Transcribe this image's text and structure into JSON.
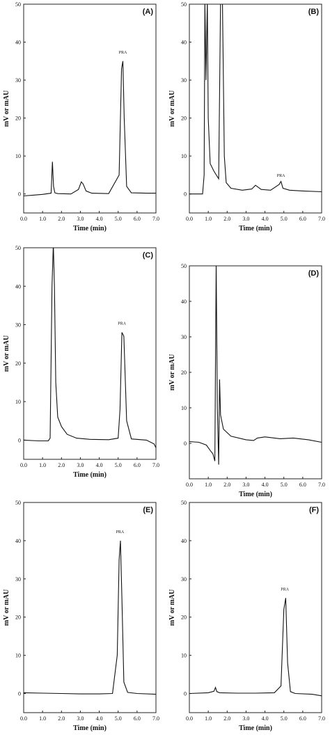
{
  "chart_data": [
    {
      "type": "line",
      "panel_label": "(A)",
      "xlabel": "Time (min)",
      "ylabel": "mV or mAU",
      "xlim": [
        0,
        7
      ],
      "ylim": [
        -5,
        50
      ],
      "xticks": [
        "0.0",
        "1.0",
        "2.0",
        "3.0",
        "4.0",
        "5.0",
        "6.0",
        "7.0"
      ],
      "yticks": [
        "0",
        "10",
        "20",
        "30",
        "40",
        "50"
      ],
      "annotations": [
        {
          "text": "PRA",
          "x": 5.25,
          "y": 37
        }
      ],
      "series": [
        {
          "x": [
            0,
            0.5,
            1.0,
            1.45,
            1.52,
            1.58,
            1.65,
            1.8,
            2.5,
            2.9,
            3.05,
            3.15,
            3.3,
            3.6,
            4.5,
            5.05,
            5.18,
            5.25,
            5.32,
            5.45,
            5.7,
            6.5,
            7.0
          ],
          "y": [
            -0.5,
            -0.3,
            -0.1,
            0.2,
            8.5,
            2.0,
            0.3,
            0.1,
            0.0,
            1.2,
            3.2,
            2.6,
            0.8,
            0.2,
            0.1,
            5.0,
            33.0,
            35.0,
            20.0,
            2.0,
            0.3,
            0.2,
            0.2
          ]
        }
      ]
    },
    {
      "type": "line",
      "panel_label": "(B)",
      "xlabel": "Time (min)",
      "ylabel": "mV or mAU",
      "xlim": [
        0,
        7
      ],
      "ylim": [
        -5,
        50
      ],
      "xticks": [
        "0.0",
        "1.0",
        "2.0",
        "3.0",
        "4.0",
        "5.0",
        "6.0",
        "7.0"
      ],
      "yticks": [
        "0",
        "10",
        "20",
        "30",
        "40",
        "50"
      ],
      "annotations": [
        {
          "text": "PRA",
          "x": 4.85,
          "y": 4.5
        }
      ],
      "series": [
        {
          "x": [
            0,
            0.7,
            0.78,
            0.82,
            0.88,
            0.95,
            1.0,
            1.1,
            1.3,
            1.55,
            1.65,
            1.75,
            1.85,
            1.95,
            2.2,
            2.8,
            3.3,
            3.5,
            3.8,
            4.3,
            4.75,
            4.85,
            4.95,
            5.3,
            6.0,
            7.0
          ],
          "y": [
            0,
            0,
            5.0,
            51.0,
            30.0,
            51.0,
            20.0,
            8.0,
            6.0,
            4.0,
            51.0,
            51.0,
            10.0,
            3.0,
            1.5,
            1.0,
            1.3,
            2.3,
            1.2,
            1.0,
            2.5,
            3.3,
            1.5,
            1.0,
            0.8,
            0.6
          ]
        }
      ]
    },
    {
      "type": "line",
      "panel_label": "(C)",
      "xlabel": "Time (min)",
      "ylabel": "mV or mAU",
      "xlim": [
        0,
        7
      ],
      "ylim": [
        -5,
        50
      ],
      "xticks": [
        "0.0",
        "1.0",
        "2.0",
        "3.0",
        "4.0",
        "5.0",
        "6.0",
        "7.0"
      ],
      "yticks": [
        "0",
        "10",
        "20",
        "30",
        "40",
        "50"
      ],
      "annotations": [
        {
          "text": "PRA",
          "x": 5.2,
          "y": 30
        }
      ],
      "series": [
        {
          "x": [
            0,
            0.8,
            1.3,
            1.4,
            1.5,
            1.57,
            1.63,
            1.7,
            1.8,
            2.0,
            2.3,
            2.8,
            3.5,
            4.5,
            5.0,
            5.1,
            5.2,
            5.3,
            5.45,
            5.7,
            6.5,
            6.9,
            7.0
          ],
          "y": [
            0,
            -0.2,
            -0.2,
            0.5,
            40.0,
            51.0,
            40.0,
            15.0,
            6.0,
            3.5,
            1.5,
            0.5,
            0.2,
            0.1,
            0.5,
            8.0,
            28.0,
            27.0,
            5.0,
            0.3,
            0.0,
            -1.0,
            -2.0
          ]
        }
      ]
    },
    {
      "type": "line",
      "panel_label": "(D)",
      "xlabel": "Time (min)",
      "ylabel": "mV or mAU",
      "xlim": [
        0,
        7
      ],
      "ylim": [
        -10,
        50
      ],
      "xticks": [
        "0.0",
        "1.0",
        "2.0",
        "3.0",
        "4.0",
        "5.0",
        "6.0",
        "7.0"
      ],
      "yticks": [
        "0",
        "10",
        "20",
        "30",
        "40",
        "50"
      ],
      "annotations": [],
      "series": [
        {
          "x": [
            0,
            0.5,
            0.9,
            1.1,
            1.25,
            1.35,
            1.42,
            1.48,
            1.55,
            1.6,
            1.65,
            1.8,
            2.2,
            3.0,
            3.4,
            3.6,
            4.0,
            4.8,
            5.5,
            6.3,
            7.0
          ],
          "y": [
            0.5,
            0.3,
            -0.5,
            -2.0,
            -3.0,
            -5.0,
            51.0,
            10.0,
            -6.0,
            18.0,
            8.0,
            4.0,
            2.0,
            1.0,
            0.8,
            1.5,
            1.8,
            1.3,
            1.5,
            1.0,
            0.3
          ]
        }
      ]
    },
    {
      "type": "line",
      "panel_label": "(E)",
      "xlabel": "Time (min)",
      "ylabel": "mV or mAU",
      "xlim": [
        0,
        7
      ],
      "ylim": [
        -5,
        50
      ],
      "xticks": [
        "0.0",
        "1.0",
        "2.0",
        "3.0",
        "4.0",
        "5.0",
        "6.0",
        "7.0"
      ],
      "yticks": [
        "0",
        "10",
        "20",
        "30",
        "40",
        "50"
      ],
      "annotations": [
        {
          "text": "PRA",
          "x": 5.1,
          "y": 42
        }
      ],
      "series": [
        {
          "x": [
            0,
            1.0,
            2.0,
            3.0,
            4.0,
            4.7,
            4.95,
            5.05,
            5.12,
            5.2,
            5.3,
            5.5,
            6.0,
            7.0
          ],
          "y": [
            0.2,
            0.1,
            0.0,
            -0.1,
            -0.1,
            0.0,
            10.0,
            35.0,
            40.0,
            25.0,
            3.0,
            0.3,
            0.0,
            -0.2
          ]
        }
      ]
    },
    {
      "type": "line",
      "panel_label": "(F)",
      "xlabel": "Time (min)",
      "ylabel": "mV or mAU",
      "xlim": [
        0,
        7
      ],
      "ylim": [
        -5,
        50
      ],
      "xticks": [
        "0.0",
        "1.0",
        "2.0",
        "3.0",
        "4.0",
        "5.0",
        "6.0",
        "7.0"
      ],
      "yticks": [
        "0",
        "10",
        "20",
        "30",
        "40",
        "50"
      ],
      "annotations": [
        {
          "text": "PRA",
          "x": 5.05,
          "y": 27
        }
      ],
      "series": [
        {
          "x": [
            0,
            1.0,
            1.3,
            1.38,
            1.45,
            1.6,
            2.5,
            3.5,
            4.5,
            4.85,
            5.0,
            5.1,
            5.2,
            5.35,
            5.6,
            6.5,
            7.0
          ],
          "y": [
            0.0,
            0.2,
            0.6,
            1.6,
            0.5,
            0.2,
            0.1,
            0.1,
            0.2,
            2.0,
            22.0,
            25.0,
            8.0,
            0.5,
            0.0,
            -0.2,
            -0.6
          ]
        }
      ]
    }
  ]
}
